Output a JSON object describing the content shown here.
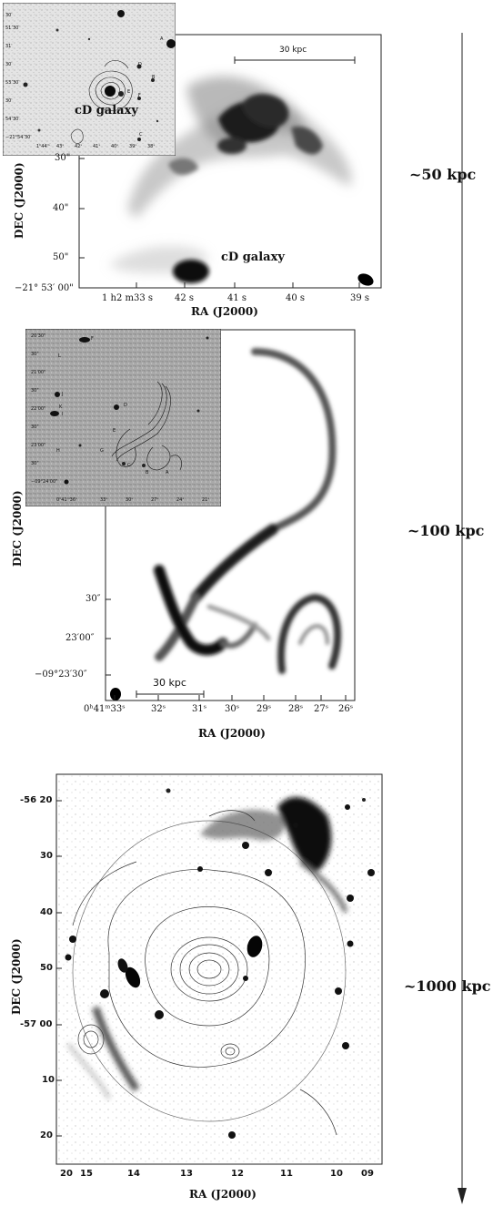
{
  "panels": {
    "p1": {
      "ylabel": "DEC (J2000)",
      "xlabel": "RA (J2000)",
      "yticks": [
        "30\"",
        "40\"",
        "50\"",
        "−21° 53′ 00\""
      ],
      "xticks": [
        "1 h2 m33 s",
        "42 s",
        "41 s",
        "40 s",
        "39 s"
      ],
      "scalebar": "30 kpc",
      "galaxy_label": "cD galaxy",
      "inset_label": "cD galaxy",
      "inset_yticks": [
        "30′",
        "51’30′",
        "31′",
        "30′",
        "53’30′",
        "30′",
        "54’30′",
        "−21°54’30′"
      ],
      "inset_xticks": [
        "1ʰ44ᵐ",
        "43ˢ",
        "42ˢ",
        "41ˢ",
        "40ˢ",
        "39ˢ",
        "38ˢ"
      ],
      "inset_letters": [
        "A",
        "B",
        "D",
        "E",
        "F",
        "C"
      ]
    },
    "p2": {
      "ylabel": "DEC (J2000)",
      "xlabel": "RA (J2000)",
      "yticks": [
        "30″",
        "23′00″",
        "−09°23′30″"
      ],
      "xticks": [
        "0ʰ41ᵐ33ˢ",
        "32ˢ",
        "31ˢ",
        "30ˢ",
        "29ˢ",
        "28ˢ",
        "27ˢ",
        "26ˢ"
      ],
      "scalebar": "30 kpc",
      "inset_yticks": [
        "20'30\"",
        "30\"",
        "21'00\"",
        "30\"",
        "22'00\"",
        "30\"",
        "23'00\"",
        "30\"",
        "−09°24'00\""
      ],
      "inset_xticks": [
        "0ʰ41ᵐ36ˢ",
        "33ˢ",
        "30ˢ",
        "27ˢ",
        "24ˢ",
        "21ˢ"
      ],
      "inset_letters": [
        "F",
        "L",
        "J",
        "K",
        "I",
        "D",
        "E",
        "H",
        "G",
        "C",
        "B",
        "A"
      ]
    },
    "p3": {
      "ylabel": "DEC (J2000)",
      "xlabel": "RA (J2000)",
      "yticks": [
        "-56 20",
        "30",
        "40",
        "50",
        "-57 00",
        "10",
        "20"
      ],
      "xticks": [
        "20",
        "15",
        "14",
        "13",
        "12",
        "11",
        "10",
        "09"
      ]
    }
  },
  "scale": {
    "labels": [
      "~50 kpc",
      "~100 kpc",
      "~1000 kpc"
    ]
  }
}
